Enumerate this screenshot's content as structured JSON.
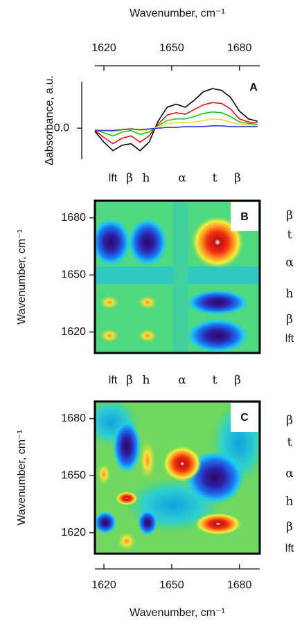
{
  "chart_data": [
    {
      "type": "line",
      "x_label": "Wavenumber, cm⁻¹",
      "y_label": "Δabsorbance, a.u.",
      "panel_label": "A",
      "x": [
        1616,
        1620,
        1624,
        1628,
        1632,
        1636,
        1640,
        1644,
        1648,
        1652,
        1656,
        1660,
        1664,
        1668,
        1672,
        1676,
        1680,
        1684,
        1688
      ],
      "xlim": [
        1616,
        1689
      ],
      "xticks": [
        1620,
        1650,
        1680
      ],
      "ylim": [
        -0.4,
        0.6
      ],
      "yticks": [
        {
          "value": 0,
          "label": "0.0"
        }
      ],
      "series": [
        {
          "color": "#000000",
          "values": [
            -0.04,
            -0.18,
            -0.29,
            -0.22,
            -0.2,
            -0.29,
            -0.18,
            0.09,
            0.27,
            0.31,
            0.27,
            0.36,
            0.47,
            0.51,
            0.49,
            0.4,
            0.22,
            0.12,
            0.09
          ]
        },
        {
          "color": "#e01010",
          "values": [
            -0.03,
            -0.12,
            -0.2,
            -0.13,
            -0.1,
            -0.18,
            -0.1,
            0.05,
            0.17,
            0.2,
            0.18,
            0.24,
            0.3,
            0.33,
            0.32,
            0.25,
            0.12,
            0.08,
            0.07
          ]
        },
        {
          "color": "#20c020",
          "values": [
            -0.02,
            -0.06,
            -0.1,
            -0.05,
            -0.03,
            -0.08,
            -0.05,
            0.03,
            0.1,
            0.12,
            0.12,
            0.15,
            0.19,
            0.21,
            0.2,
            0.15,
            0.08,
            0.06,
            0.05
          ]
        },
        {
          "color": "#e8e020",
          "values": [
            -0.02,
            -0.03,
            -0.05,
            -0.02,
            0,
            -0.03,
            -0.02,
            0.02,
            0.06,
            0.07,
            0.07,
            0.08,
            0.1,
            0.12,
            0.11,
            0.08,
            0.05,
            0.04,
            0.04
          ]
        },
        {
          "color": "#2040d0",
          "values": [
            -0.03,
            -0.03,
            -0.03,
            -0.02,
            -0.01,
            -0.02,
            -0.01,
            0,
            0.01,
            0.01,
            0.02,
            0.02,
            0.02,
            0.03,
            0.03,
            0.02,
            0.02,
            0.02,
            0.02
          ]
        }
      ]
    },
    {
      "type": "contour",
      "panel_label": "B",
      "y_label": "Wavenumber, cm⁻¹",
      "xlim": [
        1616,
        1689
      ],
      "ylim": [
        1609,
        1689
      ],
      "yticks": [
        1620,
        1650,
        1680
      ]
    },
    {
      "type": "contour",
      "panel_label": "C",
      "y_label": "Wavenumber, cm⁻¹",
      "x_label": "Wavenumber, cm⁻¹",
      "xlim": [
        1616,
        1689
      ],
      "ylim": [
        1609,
        1689
      ],
      "xticks": [
        1620,
        1650,
        1680
      ],
      "yticks": [
        1620,
        1650,
        1680
      ]
    }
  ],
  "band_labels": [
    "lft",
    "β",
    "h",
    "α",
    "t",
    "β"
  ],
  "right_labels": [
    "β",
    "t",
    "α",
    "h",
    "β",
    "lft"
  ]
}
